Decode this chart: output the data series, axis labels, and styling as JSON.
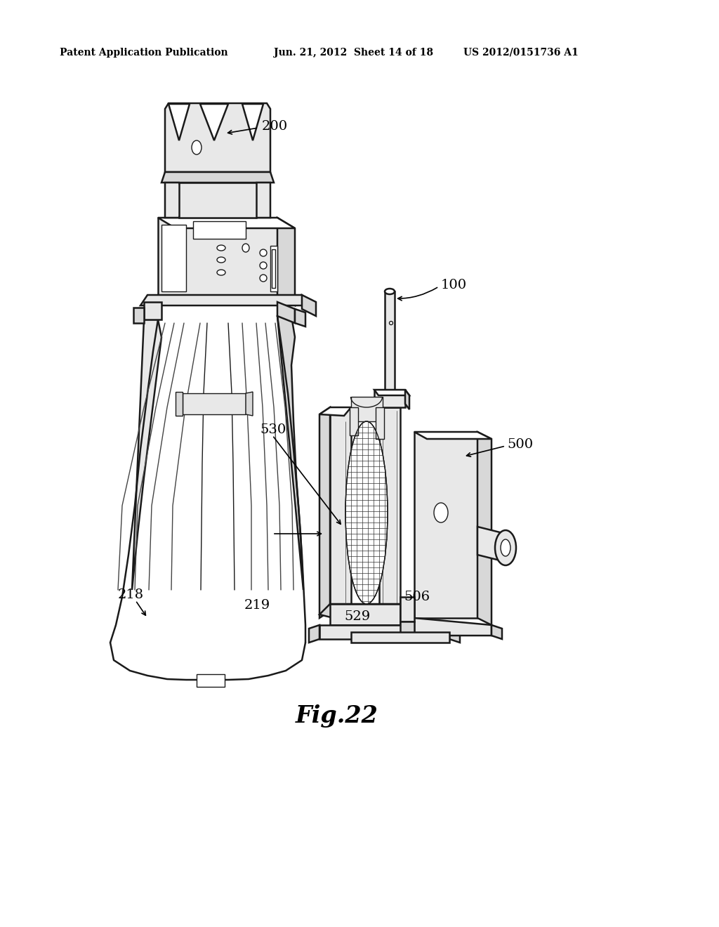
{
  "header_left": "Patent Application Publication",
  "header_mid": "Jun. 21, 2012  Sheet 14 of 18",
  "header_right": "US 2012/0151736 A1",
  "fig_label": "Fig.22",
  "background_color": "#ffffff",
  "line_color": "#1a1a1a",
  "gray_fill": "#d8d8d8",
  "light_gray": "#e8e8e8",
  "dark_gray": "#555555"
}
